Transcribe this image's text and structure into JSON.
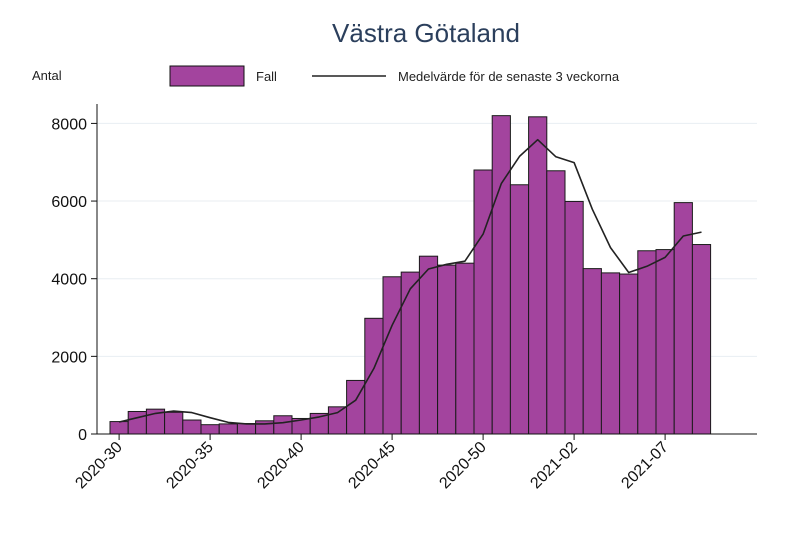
{
  "chart_data": {
    "type": "bar",
    "title": "Västra Götaland",
    "ylabel": "Antal",
    "xlabel": "",
    "ylim": [
      0,
      8500
    ],
    "yticks": [
      0,
      2000,
      4000,
      6000,
      8000
    ],
    "grid": true,
    "legend_position": "top",
    "categories": [
      "2020-30",
      "2020-31",
      "2020-32",
      "2020-33",
      "2020-34",
      "2020-35",
      "2020-36",
      "2020-37",
      "2020-38",
      "2020-39",
      "2020-40",
      "2020-41",
      "2020-42",
      "2020-43",
      "2020-44",
      "2020-45",
      "2020-46",
      "2020-47",
      "2020-48",
      "2020-49",
      "2020-50",
      "2020-51",
      "2020-52",
      "2020-53",
      "2021-01",
      "2021-02",
      "2021-03",
      "2021-04",
      "2021-05",
      "2021-06",
      "2021-07",
      "2021-08",
      "2021-09"
    ],
    "xtick_labels": [
      "2020-30",
      "2020-35",
      "2020-40",
      "2020-45",
      "2020-50",
      "2021-02",
      "2021-07"
    ],
    "series": [
      {
        "name": "Fall",
        "kind": "bar",
        "color": "#a3449e",
        "values": [
          320,
          580,
          640,
          560,
          360,
          240,
          260,
          270,
          340,
          470,
          400,
          530,
          700,
          1380,
          2980,
          4050,
          4170,
          4580,
          4350,
          4400,
          6800,
          8200,
          6420,
          8170,
          6780,
          5990,
          4260,
          4150,
          4120,
          4720,
          4750,
          5960,
          4880
        ]
      },
      {
        "name": "Medelvärde för de senaste 3 veckorna",
        "kind": "line",
        "color": "#222222",
        "values": [
          310,
          420,
          530,
          590,
          550,
          420,
          300,
          260,
          260,
          290,
          360,
          440,
          550,
          870,
          1690,
          2800,
          3740,
          4250,
          4370,
          4450,
          5150,
          6450,
          7150,
          7580,
          7140,
          6990,
          5790,
          4800,
          4160,
          4320,
          4550,
          5100,
          5200
        ]
      }
    ]
  }
}
